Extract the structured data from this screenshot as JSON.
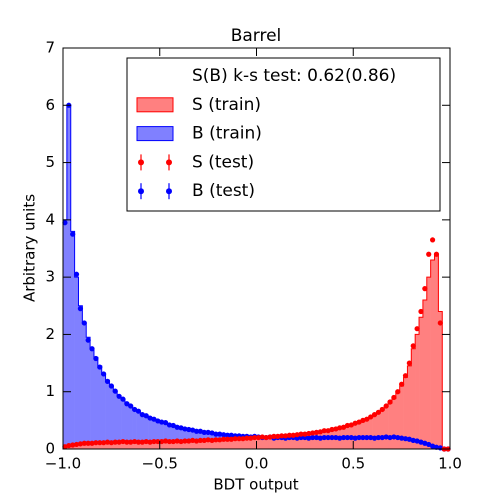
{
  "chart_data": {
    "type": "histogram",
    "title": "Barrel",
    "x_label": "BDT output",
    "y_label": "Arbitrary units",
    "legend_title": "S(B) k-s test: 0.62(0.86)",
    "legend": "upper right",
    "xlim": [
      -1,
      1
    ],
    "ylim": [
      0,
      7
    ],
    "xticks": [
      {
        "value": -1,
        "label": "−1.0"
      },
      {
        "value": -0.5,
        "label": "−0.5"
      },
      {
        "value": 0,
        "label": "0.0"
      },
      {
        "value": 0.5,
        "label": "0.5"
      },
      {
        "value": 1,
        "label": "1.0"
      }
    ],
    "yticks": [
      0,
      1,
      2,
      3,
      4,
      5,
      6,
      7
    ],
    "bins": [
      -1,
      -0.98,
      -0.96,
      -0.94,
      -0.92,
      -0.9,
      -0.88,
      -0.86,
      -0.84,
      -0.82,
      -0.8,
      -0.78,
      -0.76,
      -0.74,
      -0.72,
      -0.7,
      -0.68,
      -0.66,
      -0.64,
      -0.62,
      -0.6,
      -0.58,
      -0.56,
      -0.54,
      -0.52,
      -0.5,
      -0.48,
      -0.46,
      -0.44,
      -0.42,
      -0.4,
      -0.38,
      -0.36,
      -0.34,
      -0.32,
      -0.3,
      -0.28,
      -0.26,
      -0.24,
      -0.22,
      -0.2,
      -0.18,
      -0.16,
      -0.14,
      -0.12,
      -0.1,
      -0.08,
      -0.06,
      -0.04,
      -0.02,
      0,
      0.02,
      0.04,
      0.06,
      0.08,
      0.1,
      0.12,
      0.14,
      0.16,
      0.18,
      0.2,
      0.22,
      0.24,
      0.26,
      0.28,
      0.3,
      0.32,
      0.34,
      0.36,
      0.38,
      0.4,
      0.42,
      0.44,
      0.46,
      0.48,
      0.5,
      0.52,
      0.54,
      0.56,
      0.58,
      0.6,
      0.62,
      0.64,
      0.66,
      0.68,
      0.7,
      0.72,
      0.74,
      0.76,
      0.78,
      0.8,
      0.82,
      0.84,
      0.86,
      0.88,
      0.9,
      0.92,
      0.94,
      0.96,
      0.98,
      1
    ],
    "series": [
      {
        "name": "B (train)",
        "style": "fill",
        "color": "#0000ff",
        "fill": "#8080ff",
        "values": [
          4.0,
          6.0,
          3.8,
          3.0,
          2.5,
          2.2,
          1.95,
          1.75,
          1.6,
          1.45,
          1.3,
          1.2,
          1.1,
          1.0,
          0.93,
          0.86,
          0.8,
          0.74,
          0.7,
          0.65,
          0.61,
          0.58,
          0.55,
          0.52,
          0.5,
          0.47,
          0.45,
          0.43,
          0.41,
          0.39,
          0.37,
          0.36,
          0.34,
          0.33,
          0.32,
          0.31,
          0.3,
          0.29,
          0.28,
          0.27,
          0.26,
          0.25,
          0.25,
          0.24,
          0.24,
          0.23,
          0.23,
          0.22,
          0.22,
          0.22,
          0.21,
          0.21,
          0.2,
          0.2,
          0.2,
          0.2,
          0.2,
          0.2,
          0.2,
          0.2,
          0.2,
          0.2,
          0.2,
          0.2,
          0.2,
          0.2,
          0.2,
          0.2,
          0.2,
          0.2,
          0.2,
          0.2,
          0.2,
          0.2,
          0.2,
          0.2,
          0.2,
          0.2,
          0.2,
          0.2,
          0.2,
          0.2,
          0.2,
          0.2,
          0.2,
          0.2,
          0.19,
          0.18,
          0.17,
          0.16,
          0.15,
          0.13,
          0.11,
          0.09,
          0.07,
          0.04,
          0.02,
          0.01,
          0,
          0
        ]
      },
      {
        "name": "S (train)",
        "style": "fill",
        "color": "#ff0000",
        "fill": "#ff8080",
        "values": [
          0.04,
          0.06,
          0.07,
          0.08,
          0.09,
          0.09,
          0.1,
          0.1,
          0.1,
          0.11,
          0.11,
          0.11,
          0.11,
          0.12,
          0.12,
          0.12,
          0.12,
          0.12,
          0.12,
          0.12,
          0.12,
          0.12,
          0.12,
          0.12,
          0.13,
          0.13,
          0.13,
          0.13,
          0.13,
          0.13,
          0.13,
          0.14,
          0.14,
          0.14,
          0.14,
          0.15,
          0.15,
          0.15,
          0.15,
          0.16,
          0.16,
          0.16,
          0.17,
          0.17,
          0.17,
          0.18,
          0.18,
          0.18,
          0.19,
          0.19,
          0.2,
          0.2,
          0.2,
          0.21,
          0.21,
          0.22,
          0.22,
          0.23,
          0.23,
          0.24,
          0.25,
          0.25,
          0.26,
          0.27,
          0.28,
          0.29,
          0.3,
          0.31,
          0.32,
          0.33,
          0.35,
          0.36,
          0.38,
          0.4,
          0.42,
          0.44,
          0.46,
          0.49,
          0.52,
          0.55,
          0.59,
          0.63,
          0.68,
          0.74,
          0.8,
          0.88,
          0.98,
          1.1,
          1.25,
          1.45,
          1.75,
          2.0,
          2.3,
          2.6,
          3.0,
          3.3,
          3.4,
          2.4,
          0,
          0
        ]
      },
      {
        "name": "B (test)",
        "style": "points",
        "color": "#0000ff",
        "values": [
          3.95,
          6.0,
          3.75,
          3.05,
          2.45,
          2.2,
          1.9,
          1.75,
          1.58,
          1.43,
          1.31,
          1.18,
          1.1,
          1.01,
          0.92,
          0.87,
          0.79,
          0.75,
          0.69,
          0.66,
          0.6,
          0.58,
          0.54,
          0.52,
          0.49,
          0.47,
          0.46,
          0.42,
          0.41,
          0.38,
          0.37,
          0.35,
          0.34,
          0.33,
          0.31,
          0.31,
          0.29,
          0.29,
          0.28,
          0.26,
          0.26,
          0.25,
          0.24,
          0.24,
          0.23,
          0.23,
          0.22,
          0.22,
          0.21,
          0.22,
          0.21,
          0.2,
          0.2,
          0.21,
          0.19,
          0.2,
          0.2,
          0.19,
          0.2,
          0.2,
          0.19,
          0.2,
          0.2,
          0.19,
          0.2,
          0.2,
          0.19,
          0.2,
          0.2,
          0.2,
          0.2,
          0.19,
          0.2,
          0.2,
          0.2,
          0.19,
          0.2,
          0.2,
          0.2,
          0.2,
          0.19,
          0.2,
          0.2,
          0.21,
          0.2,
          0.21,
          0.2,
          0.19,
          0.18,
          0.17,
          0.15,
          0.14,
          0.12,
          0.1,
          0.08,
          0.05,
          0.03,
          0.02,
          0,
          0
        ]
      },
      {
        "name": "S (test)",
        "style": "points",
        "color": "#ff0000",
        "values": [
          0.04,
          0.06,
          0.07,
          0.08,
          0.09,
          0.1,
          0.1,
          0.1,
          0.11,
          0.11,
          0.11,
          0.12,
          0.11,
          0.12,
          0.12,
          0.13,
          0.12,
          0.12,
          0.13,
          0.12,
          0.12,
          0.13,
          0.12,
          0.13,
          0.13,
          0.13,
          0.14,
          0.13,
          0.13,
          0.14,
          0.13,
          0.14,
          0.14,
          0.15,
          0.14,
          0.15,
          0.15,
          0.16,
          0.15,
          0.16,
          0.16,
          0.17,
          0.17,
          0.17,
          0.18,
          0.18,
          0.18,
          0.19,
          0.19,
          0.2,
          0.2,
          0.21,
          0.2,
          0.21,
          0.22,
          0.22,
          0.23,
          0.23,
          0.24,
          0.24,
          0.25,
          0.26,
          0.26,
          0.27,
          0.28,
          0.29,
          0.3,
          0.32,
          0.32,
          0.34,
          0.35,
          0.37,
          0.38,
          0.41,
          0.42,
          0.45,
          0.47,
          0.5,
          0.52,
          0.56,
          0.6,
          0.64,
          0.69,
          0.75,
          0.82,
          0.9,
          1.0,
          1.13,
          1.28,
          1.5,
          1.8,
          2.1,
          2.4,
          2.8,
          3.4,
          3.65,
          3.4,
          2.2,
          0,
          0
        ]
      }
    ]
  }
}
